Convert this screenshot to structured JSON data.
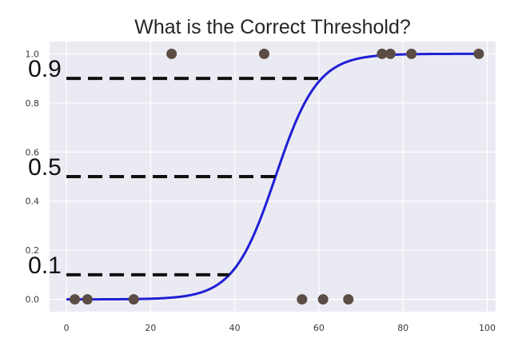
{
  "chart_data": {
    "type": "scatter",
    "title": "What is the Correct Threshold?",
    "xlabel": "",
    "ylabel": "",
    "xlim": [
      -4,
      102
    ],
    "ylim": [
      -0.05,
      1.05
    ],
    "x_ticks": [
      0,
      20,
      40,
      60,
      80,
      100
    ],
    "y_ticks": [
      0.0,
      0.2,
      0.4,
      0.6,
      0.8,
      1.0
    ],
    "x_tick_labels": [
      "0",
      "20",
      "40",
      "60",
      "80",
      "100"
    ],
    "y_tick_labels": [
      "0.0",
      "0.2",
      "0.4",
      "0.6",
      "0.8",
      "1.0"
    ],
    "grid": true,
    "legend": "none",
    "colors": {
      "background": "#eaeaf2",
      "grid": "#ffffff",
      "points": "#5b4d45",
      "curve": "#1f1fd6",
      "thresholds": "#111111"
    },
    "points": [
      {
        "x": 2,
        "y": 0
      },
      {
        "x": 5,
        "y": 0
      },
      {
        "x": 16,
        "y": 0
      },
      {
        "x": 25,
        "y": 1
      },
      {
        "x": 47,
        "y": 1
      },
      {
        "x": 56,
        "y": 0
      },
      {
        "x": 61,
        "y": 0
      },
      {
        "x": 67,
        "y": 0
      },
      {
        "x": 75,
        "y": 1
      },
      {
        "x": 77,
        "y": 1
      },
      {
        "x": 82,
        "y": 1
      },
      {
        "x": 98,
        "y": 1
      }
    ],
    "curve": {
      "type": "logistic",
      "midpoint": 49.7,
      "slope": 0.2,
      "x_range": [
        0,
        98
      ]
    },
    "thresholds": [
      {
        "label": "0.9",
        "y": 0.9,
        "x_end": 60.7
      },
      {
        "label": "0.5",
        "y": 0.5,
        "x_end": 49.7
      },
      {
        "label": "0.1",
        "y": 0.1,
        "x_end": 38.7
      }
    ]
  }
}
